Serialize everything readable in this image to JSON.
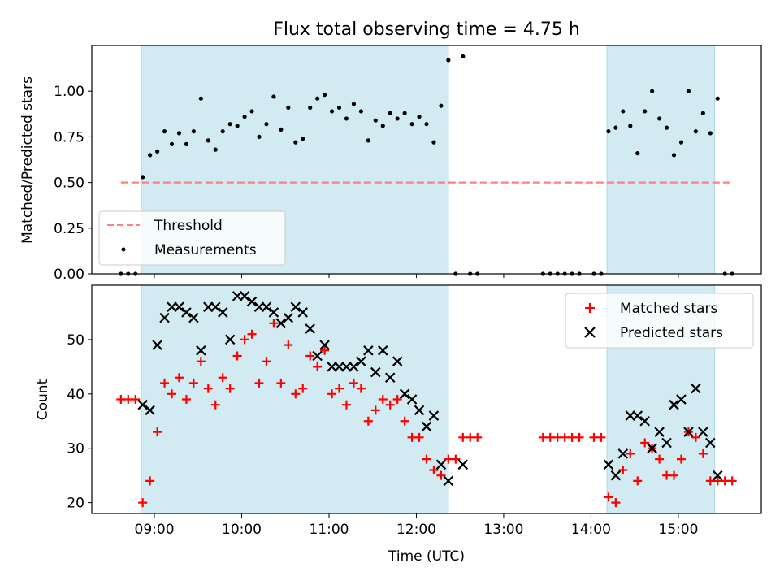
{
  "chart_data": [
    {
      "type": "scatter",
      "title": "Flux total observing time = 4.75 h",
      "xlabel": "",
      "ylabel": "Matched/Predicted stars",
      "xlim": [
        "08:17",
        "15:57"
      ],
      "ylim": [
        0,
        1.25
      ],
      "yticks": [
        "0.00",
        "0.25",
        "0.50",
        "0.75",
        "1.00"
      ],
      "grid": false,
      "legend_position": "lower-left",
      "shaded_intervals": [
        [
          "08:51",
          "12:22"
        ],
        [
          "14:11",
          "15:25"
        ]
      ],
      "shade_color": "#add8e6",
      "threshold": {
        "name": "Threshold",
        "value": 0.5,
        "x_range": [
          "08:37",
          "15:37"
        ],
        "color": "#ff8080"
      },
      "series": [
        {
          "name": "Measurements",
          "color": "#000000",
          "x": [
            "08:37",
            "08:42",
            "08:47",
            "08:52",
            "08:57",
            "09:02",
            "09:07",
            "09:12",
            "09:17",
            "09:22",
            "09:27",
            "09:32",
            "09:37",
            "09:42",
            "09:47",
            "09:52",
            "09:57",
            "10:02",
            "10:07",
            "10:12",
            "10:17",
            "10:22",
            "10:27",
            "10:32",
            "10:37",
            "10:42",
            "10:47",
            "10:52",
            "10:57",
            "11:02",
            "11:07",
            "11:12",
            "11:17",
            "11:22",
            "11:27",
            "11:32",
            "11:37",
            "11:42",
            "11:47",
            "11:52",
            "11:57",
            "12:02",
            "12:07",
            "12:12",
            "12:17",
            "12:22",
            "12:27",
            "12:32",
            "12:37",
            "12:42",
            "13:27",
            "13:32",
            "13:37",
            "13:42",
            "13:47",
            "13:52",
            "14:02",
            "14:07",
            "14:12",
            "14:17",
            "14:22",
            "14:27",
            "14:32",
            "14:37",
            "14:42",
            "14:47",
            "14:52",
            "14:57",
            "15:02",
            "15:07",
            "15:12",
            "15:17",
            "15:22",
            "15:27",
            "15:32",
            "15:37"
          ],
          "y": [
            0,
            0,
            0,
            0.53,
            0.65,
            0.67,
            0.78,
            0.71,
            0.77,
            0.71,
            0.78,
            0.96,
            0.73,
            0.68,
            0.78,
            0.82,
            0.81,
            0.86,
            0.89,
            0.75,
            0.82,
            0.97,
            0.79,
            0.91,
            0.72,
            0.74,
            0.91,
            0.96,
            0.98,
            0.89,
            0.91,
            0.85,
            0.93,
            0.89,
            0.73,
            0.84,
            0.81,
            0.88,
            0.85,
            0.88,
            0.82,
            0.86,
            0.82,
            0.72,
            0.92,
            1.17,
            0,
            1.19,
            0,
            0,
            0,
            0,
            0,
            0,
            0,
            0,
            0,
            0,
            0.78,
            0.8,
            0.89,
            0.81,
            0.66,
            0.89,
            1.0,
            0.85,
            0.8,
            0.65,
            0.72,
            1.0,
            0.78,
            0.88,
            0.77,
            0.96,
            0,
            0
          ]
        }
      ]
    },
    {
      "type": "scatter",
      "title": "",
      "xlabel": "Time (UTC)",
      "ylabel": "Count",
      "xlim": [
        "08:17",
        "15:57"
      ],
      "xticks": [
        "09:00",
        "10:00",
        "11:00",
        "12:00",
        "13:00",
        "14:00",
        "15:00"
      ],
      "ylim": [
        18,
        60
      ],
      "yticks": [
        "20",
        "30",
        "40",
        "50"
      ],
      "grid": false,
      "legend_position": "upper-right",
      "shaded_intervals": [
        [
          "08:51",
          "12:22"
        ],
        [
          "14:11",
          "15:25"
        ]
      ],
      "shade_color": "#add8e6",
      "series": [
        {
          "name": "Matched stars",
          "marker": "+",
          "color": "#ff0000",
          "x": [
            "08:37",
            "08:42",
            "08:47",
            "08:52",
            "08:57",
            "09:02",
            "09:07",
            "09:12",
            "09:17",
            "09:22",
            "09:27",
            "09:32",
            "09:37",
            "09:42",
            "09:47",
            "09:52",
            "09:57",
            "10:02",
            "10:07",
            "10:12",
            "10:17",
            "10:22",
            "10:27",
            "10:32",
            "10:37",
            "10:42",
            "10:47",
            "10:52",
            "10:57",
            "11:02",
            "11:07",
            "11:12",
            "11:17",
            "11:22",
            "11:27",
            "11:32",
            "11:37",
            "11:42",
            "11:47",
            "11:52",
            "11:57",
            "12:02",
            "12:07",
            "12:12",
            "12:17",
            "12:22",
            "12:27",
            "12:32",
            "12:37",
            "12:42",
            "13:27",
            "13:32",
            "13:37",
            "13:42",
            "13:47",
            "13:52",
            "14:02",
            "14:07",
            "14:12",
            "14:17",
            "14:22",
            "14:27",
            "14:32",
            "14:37",
            "14:42",
            "14:47",
            "14:52",
            "14:57",
            "15:02",
            "15:07",
            "15:12",
            "15:17",
            "15:22",
            "15:27",
            "15:32",
            "15:37"
          ],
          "y": [
            39,
            39,
            39,
            20,
            24,
            33,
            42,
            40,
            43,
            39,
            42,
            46,
            41,
            38,
            43,
            41,
            47,
            50,
            51,
            42,
            46,
            53,
            42,
            49,
            40,
            41,
            47,
            45,
            48,
            40,
            41,
            38,
            42,
            41,
            35,
            37,
            39,
            38,
            39,
            35,
            32,
            32,
            28,
            26,
            25,
            28,
            28,
            32,
            32,
            32,
            32,
            32,
            32,
            32,
            32,
            32,
            32,
            32,
            21,
            20,
            26,
            29,
            24,
            31,
            30,
            28,
            25,
            25,
            28,
            33,
            32,
            29,
            24,
            24,
            24,
            24
          ]
        },
        {
          "name": "Predicted stars",
          "marker": "x",
          "color": "#000000",
          "x": [
            "08:52",
            "08:57",
            "09:02",
            "09:07",
            "09:12",
            "09:17",
            "09:22",
            "09:27",
            "09:32",
            "09:37",
            "09:42",
            "09:47",
            "09:52",
            "09:57",
            "10:02",
            "10:07",
            "10:12",
            "10:17",
            "10:22",
            "10:27",
            "10:32",
            "10:37",
            "10:42",
            "10:47",
            "10:52",
            "10:57",
            "11:02",
            "11:07",
            "11:12",
            "11:17",
            "11:22",
            "11:27",
            "11:32",
            "11:37",
            "11:42",
            "11:47",
            "11:52",
            "11:57",
            "12:02",
            "12:07",
            "12:12",
            "12:17",
            "12:22",
            "12:32",
            "14:12",
            "14:17",
            "14:22",
            "14:27",
            "14:32",
            "14:37",
            "14:42",
            "14:47",
            "14:52",
            "14:57",
            "15:02",
            "15:07",
            "15:12",
            "15:17",
            "15:22",
            "15:27"
          ],
          "y": [
            38,
            37,
            49,
            54,
            56,
            56,
            55,
            54,
            48,
            56,
            56,
            55,
            50,
            58,
            58,
            57,
            56,
            56,
            55,
            53,
            54,
            56,
            55,
            52,
            47,
            49,
            45,
            45,
            45,
            45,
            46,
            48,
            44,
            48,
            43,
            46,
            40,
            39,
            37,
            34,
            36,
            27,
            24,
            27,
            27,
            25,
            29,
            36,
            36,
            35,
            30,
            33,
            31,
            38,
            39,
            33,
            41,
            33,
            31,
            25
          ]
        }
      ]
    }
  ]
}
